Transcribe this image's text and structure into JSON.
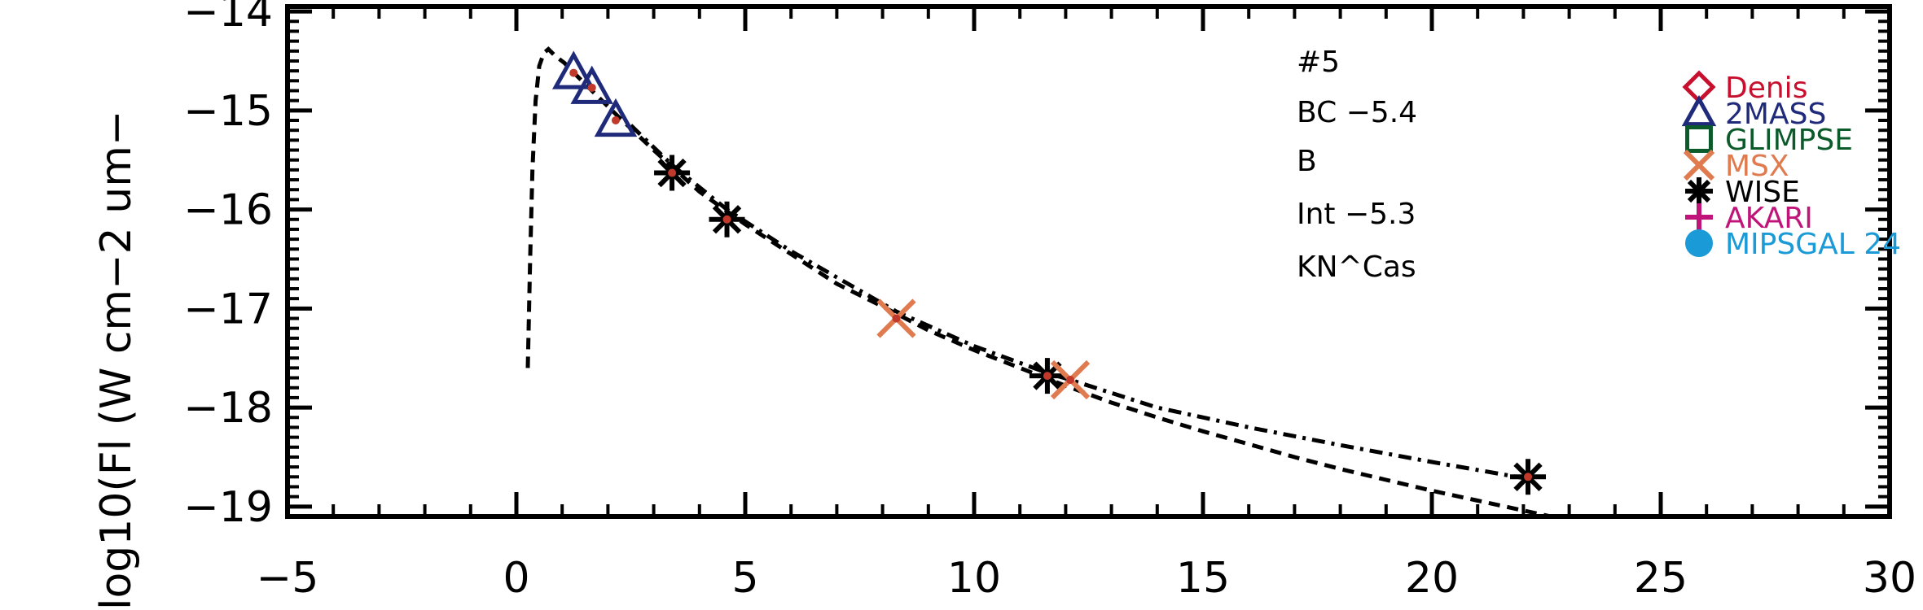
{
  "chart_data": {
    "type": "scatter",
    "title": "",
    "xlabel": "",
    "ylabel": "log10(Fl (W cm−2 um−",
    "xlim": [
      -5,
      30
    ],
    "ylim": [
      -19.1,
      -13.95
    ],
    "x_ticks": [
      -5,
      0,
      5,
      10,
      15,
      20,
      25,
      30
    ],
    "x_tick_labels": [
      "−5",
      "0",
      "5",
      "10",
      "15",
      "20",
      "25",
      "30"
    ],
    "y_ticks": [
      -19,
      -18,
      -17,
      -16,
      -15,
      -14
    ],
    "y_tick_labels": [
      "−19",
      "−18",
      "−17",
      "−16",
      "−15",
      "−14"
    ],
    "grid": false,
    "annotations": [
      "#5",
      "BC  −5.4",
      "B",
      "Int  −5.3",
      "KN^Cas"
    ],
    "legend": {
      "placement": "top-right",
      "entries": [
        {
          "label": "Denis",
          "marker": "diamond",
          "color": "#c8102e"
        },
        {
          "label": "2MASS",
          "marker": "triangle",
          "color": "#1f2a7a"
        },
        {
          "label": "GLIMPSE",
          "marker": "square",
          "color": "#0b5a2a"
        },
        {
          "label": "MSX",
          "marker": "x",
          "color": "#e07a4f"
        },
        {
          "label": "WISE",
          "marker": "asterisk",
          "color": "#000000"
        },
        {
          "label": "AKARI",
          "marker": "plus",
          "color": "#c0147a"
        },
        {
          "label": "MIPSGAL 24",
          "marker": "circle",
          "color": "#1a9ad6"
        }
      ]
    },
    "series": [
      {
        "marker": "triangle",
        "color": "#1f2a7a",
        "points": [
          [
            1.25,
            -14.62
          ],
          [
            1.65,
            -14.77
          ],
          [
            2.17,
            -15.1
          ]
        ]
      },
      {
        "marker": "asterisk",
        "color": "#000000",
        "points": [
          [
            3.4,
            -15.63
          ],
          [
            4.6,
            -16.1
          ],
          [
            11.6,
            -17.68
          ],
          [
            22.1,
            -18.7
          ]
        ]
      },
      {
        "marker": "x",
        "color": "#e07a4f",
        "points": [
          [
            8.3,
            -17.1
          ],
          [
            12.1,
            -17.72
          ]
        ]
      },
      {
        "marker": "dot",
        "color": "#c0392b",
        "points": [
          [
            1.25,
            -14.62
          ],
          [
            1.65,
            -14.77
          ],
          [
            2.17,
            -15.1
          ],
          [
            3.4,
            -15.63
          ],
          [
            4.6,
            -16.1
          ],
          [
            8.3,
            -17.1
          ],
          [
            11.6,
            -17.68
          ],
          [
            12.1,
            -17.72
          ],
          [
            22.1,
            -18.7
          ]
        ]
      }
    ],
    "lines": [
      {
        "style": "dashed",
        "points": [
          [
            0.25,
            -17.6
          ],
          [
            0.3,
            -16.5
          ],
          [
            0.35,
            -15.6
          ],
          [
            0.42,
            -14.9
          ],
          [
            0.5,
            -14.55
          ],
          [
            0.6,
            -14.42
          ],
          [
            0.7,
            -14.38
          ],
          [
            0.85,
            -14.45
          ],
          [
            1.05,
            -14.52
          ],
          [
            1.3,
            -14.64
          ],
          [
            1.65,
            -14.8
          ],
          [
            2.2,
            -15.05
          ],
          [
            3.0,
            -15.4
          ],
          [
            4.0,
            -15.82
          ],
          [
            5.0,
            -16.15
          ],
          [
            6.0,
            -16.45
          ],
          [
            7.0,
            -16.75
          ],
          [
            8.0,
            -16.98
          ],
          [
            9.0,
            -17.22
          ],
          [
            10.0,
            -17.42
          ],
          [
            11.0,
            -17.6
          ],
          [
            12.0,
            -17.78
          ],
          [
            13.0,
            -17.95
          ],
          [
            14.0,
            -18.1
          ],
          [
            15.0,
            -18.24
          ],
          [
            16.0,
            -18.37
          ],
          [
            17.0,
            -18.5
          ],
          [
            18.0,
            -18.62
          ],
          [
            19.0,
            -18.73
          ],
          [
            20.0,
            -18.84
          ],
          [
            21.0,
            -18.94
          ],
          [
            22.0,
            -19.04
          ],
          [
            23.0,
            -19.14
          ],
          [
            24.0,
            -19.24
          ]
        ]
      },
      {
        "style": "dashdot",
        "points": [
          [
            2.5,
            -15.15
          ],
          [
            3.4,
            -15.55
          ],
          [
            4.6,
            -16.0
          ],
          [
            6.0,
            -16.42
          ],
          [
            8.3,
            -17.03
          ],
          [
            10.0,
            -17.38
          ],
          [
            11.6,
            -17.65
          ],
          [
            12.1,
            -17.72
          ],
          [
            14.0,
            -18.0
          ],
          [
            16.0,
            -18.2
          ],
          [
            18.0,
            -18.38
          ],
          [
            20.0,
            -18.55
          ],
          [
            22.1,
            -18.72
          ]
        ]
      }
    ]
  }
}
